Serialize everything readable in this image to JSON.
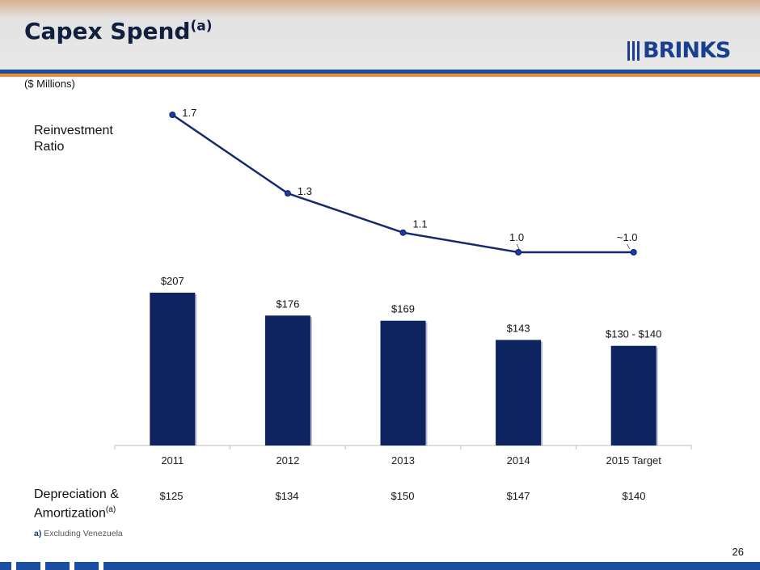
{
  "title": {
    "text": "Capex Spend",
    "superscript": "(a)"
  },
  "logo": {
    "text": "BRINKS",
    "color": "#1a3f91"
  },
  "units": "($ Millions)",
  "ratio_label": "Reinvestment Ratio",
  "depreciation": {
    "label": "Depreciation & Amortization",
    "superscript": "(a)",
    "values": [
      "$125",
      "$134",
      "$150",
      "$147",
      "$140"
    ]
  },
  "footnote": {
    "marker": "a)",
    "text": "Excluding Venezuela"
  },
  "page_number": "26",
  "colors": {
    "bar": "#0d2460",
    "line": "#152a6e",
    "accent_blue": "#1b4ea2",
    "accent_orange": "#f08c2e"
  },
  "chart_data": [
    {
      "type": "bar",
      "categories": [
        "2011",
        "2012",
        "2013",
        "2014",
        "2015 Target"
      ],
      "values": [
        207,
        176,
        169,
        143,
        135
      ],
      "value_labels": [
        "$207",
        "$176",
        "$169",
        "$143",
        "$130 - $140"
      ],
      "ylim": [
        0,
        220
      ],
      "grid": false,
      "xlabel": "",
      "ylabel": ""
    },
    {
      "type": "line",
      "categories": [
        "2011",
        "2012",
        "2013",
        "2014",
        "2015 Target"
      ],
      "values": [
        1.7,
        1.3,
        1.1,
        1.0,
        1.0
      ],
      "value_labels": [
        "1.7",
        "1.3",
        "1.1",
        "1.0",
        "~1.0"
      ],
      "ylim": [
        0.9,
        1.7
      ],
      "grid": false
    }
  ]
}
